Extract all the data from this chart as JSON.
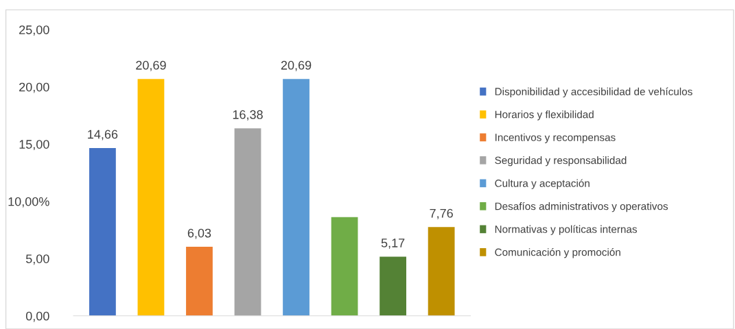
{
  "chart_data": {
    "type": "bar",
    "categories": [
      null,
      null,
      null,
      null,
      null,
      null,
      null,
      null
    ],
    "series": [
      {
        "name": "Disponibilidad y accesibilidad de vehículos",
        "color": "#4472c4",
        "values": [
          14.66,
          null,
          null,
          null,
          null,
          null,
          null,
          null
        ],
        "value_labels": [
          "14,66",
          null,
          null,
          null,
          null,
          null,
          null,
          null
        ]
      },
      {
        "name": "Horarios y flexibilidad",
        "color": "#ffc000",
        "values": [
          null,
          20.69,
          null,
          null,
          null,
          null,
          null,
          null
        ],
        "value_labels": [
          null,
          "20,69",
          null,
          null,
          null,
          null,
          null,
          null
        ]
      },
      {
        "name": "Incentivos y recompensas",
        "color": "#ed7d31",
        "values": [
          null,
          null,
          6.03,
          null,
          null,
          null,
          null,
          null
        ],
        "value_labels": [
          null,
          null,
          "6,03",
          null,
          null,
          null,
          null,
          null
        ]
      },
      {
        "name": "Seguridad y responsabilidad",
        "color": "#a5a5a5",
        "values": [
          null,
          null,
          null,
          16.38,
          null,
          null,
          null,
          null
        ],
        "value_labels": [
          null,
          null,
          null,
          "16,38",
          null,
          null,
          null,
          null
        ]
      },
      {
        "name": "Cultura y aceptación",
        "color": "#5b9bd5",
        "values": [
          null,
          null,
          null,
          null,
          20.69,
          null,
          null,
          null
        ],
        "value_labels": [
          null,
          null,
          null,
          null,
          "20,69",
          null,
          null,
          null
        ]
      },
      {
        "name": "Desafíos administrativos y operativos",
        "color": "#70ad47",
        "values": [
          null,
          null,
          null,
          null,
          null,
          8.62,
          null,
          null
        ],
        "value_labels": [
          null,
          null,
          null,
          null,
          null,
          null,
          null,
          null
        ]
      },
      {
        "name": "Normativas y políticas internas",
        "color": "#548235",
        "values": [
          null,
          null,
          null,
          null,
          null,
          null,
          5.17,
          null
        ],
        "value_labels": [
          null,
          null,
          null,
          null,
          null,
          null,
          "5,17",
          null
        ]
      },
      {
        "name": "Comunicación y promoción",
        "color": "#bf9000",
        "values": [
          null,
          null,
          null,
          null,
          null,
          null,
          null,
          7.76
        ],
        "value_labels": [
          null,
          null,
          null,
          null,
          null,
          null,
          null,
          "7,76"
        ]
      }
    ],
    "ylim": [
      0,
      25
    ],
    "yticks": [
      {
        "value": 0,
        "label": "0,00"
      },
      {
        "value": 5,
        "label": "5,00"
      },
      {
        "value": 10,
        "label": "10,00%"
      },
      {
        "value": 15,
        "label": "15,00"
      },
      {
        "value": 20,
        "label": "20,00"
      },
      {
        "value": 25,
        "label": "25,00"
      }
    ],
    "grid": false,
    "legend": "right",
    "tick_labels": "y"
  }
}
